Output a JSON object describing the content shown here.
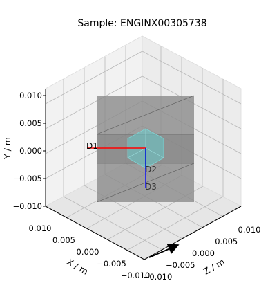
{
  "chart_data": {
    "type": "3d-instrument-view",
    "title": "Sample: ENGINX00305738",
    "xlabel": "X / m",
    "ylabel": "Y / m",
    "zlabel": "Z / m",
    "xlim": [
      -0.01,
      0.01
    ],
    "ylim": [
      -0.01,
      0.01
    ],
    "zlim": [
      -0.01,
      0.01
    ],
    "yticks": [
      "0.010",
      "0.005",
      "0.000",
      "−0.005",
      "−0.010"
    ],
    "xticks": [
      "0.010",
      "0.005",
      "0.000",
      "−0.005",
      "−0.010"
    ],
    "zticks": [
      "−0.010",
      "−0.005",
      "0.000",
      "0.005",
      "0.010"
    ],
    "grid": true,
    "detectors": [
      {
        "name": "D1",
        "color": "#ff0000"
      },
      {
        "name": "D2",
        "color": "#00aa00"
      },
      {
        "name": "D3",
        "color": "#0000ff"
      }
    ],
    "colors": {
      "container": "#8c8c8c",
      "sample": "#66cccc",
      "pane": "#f2f2f2"
    }
  }
}
